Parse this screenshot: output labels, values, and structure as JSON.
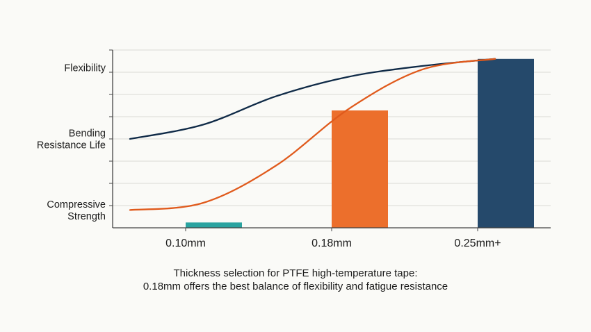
{
  "chart_data": {
    "type": "bar",
    "categories": [
      "0.10mm",
      "0.18mm",
      "0.25mm+"
    ],
    "y_categories": [
      {
        "lines": [
          "Flexibility"
        ],
        "level": 9
      },
      {
        "lines": [
          "Bending",
          "Resistance Life"
        ],
        "level": 5
      },
      {
        "lines": [
          "Compressive",
          "Strength"
        ],
        "level": 1
      }
    ],
    "ylim": [
      0,
      10
    ],
    "bars": [
      {
        "category": "0.10mm",
        "value": 0.3,
        "color": "#2aa3a0"
      },
      {
        "category": "0.18mm",
        "value": 6.6,
        "color": "#ec6f2c"
      },
      {
        "category": "0.25mm+",
        "value": 9.5,
        "color": "#25496b"
      }
    ],
    "series": [
      {
        "color": "#0f2a47",
        "x": [
          0.0,
          0.5,
          1.0,
          1.5,
          2.0,
          2.5
        ],
        "y": [
          5.0,
          5.8,
          7.4,
          8.5,
          9.1,
          9.5
        ]
      },
      {
        "color": "#e05a1c",
        "x": [
          0.0,
          0.5,
          1.0,
          1.5,
          2.0,
          2.5
        ],
        "y": [
          1.0,
          1.4,
          3.5,
          6.7,
          8.9,
          9.5
        ]
      }
    ],
    "grid": true,
    "caption_lines": [
      "Thickness selection for PTFE high-temperature tape:",
      "0.18mm offers the best balance of flexibility and fatigue resistance"
    ]
  }
}
